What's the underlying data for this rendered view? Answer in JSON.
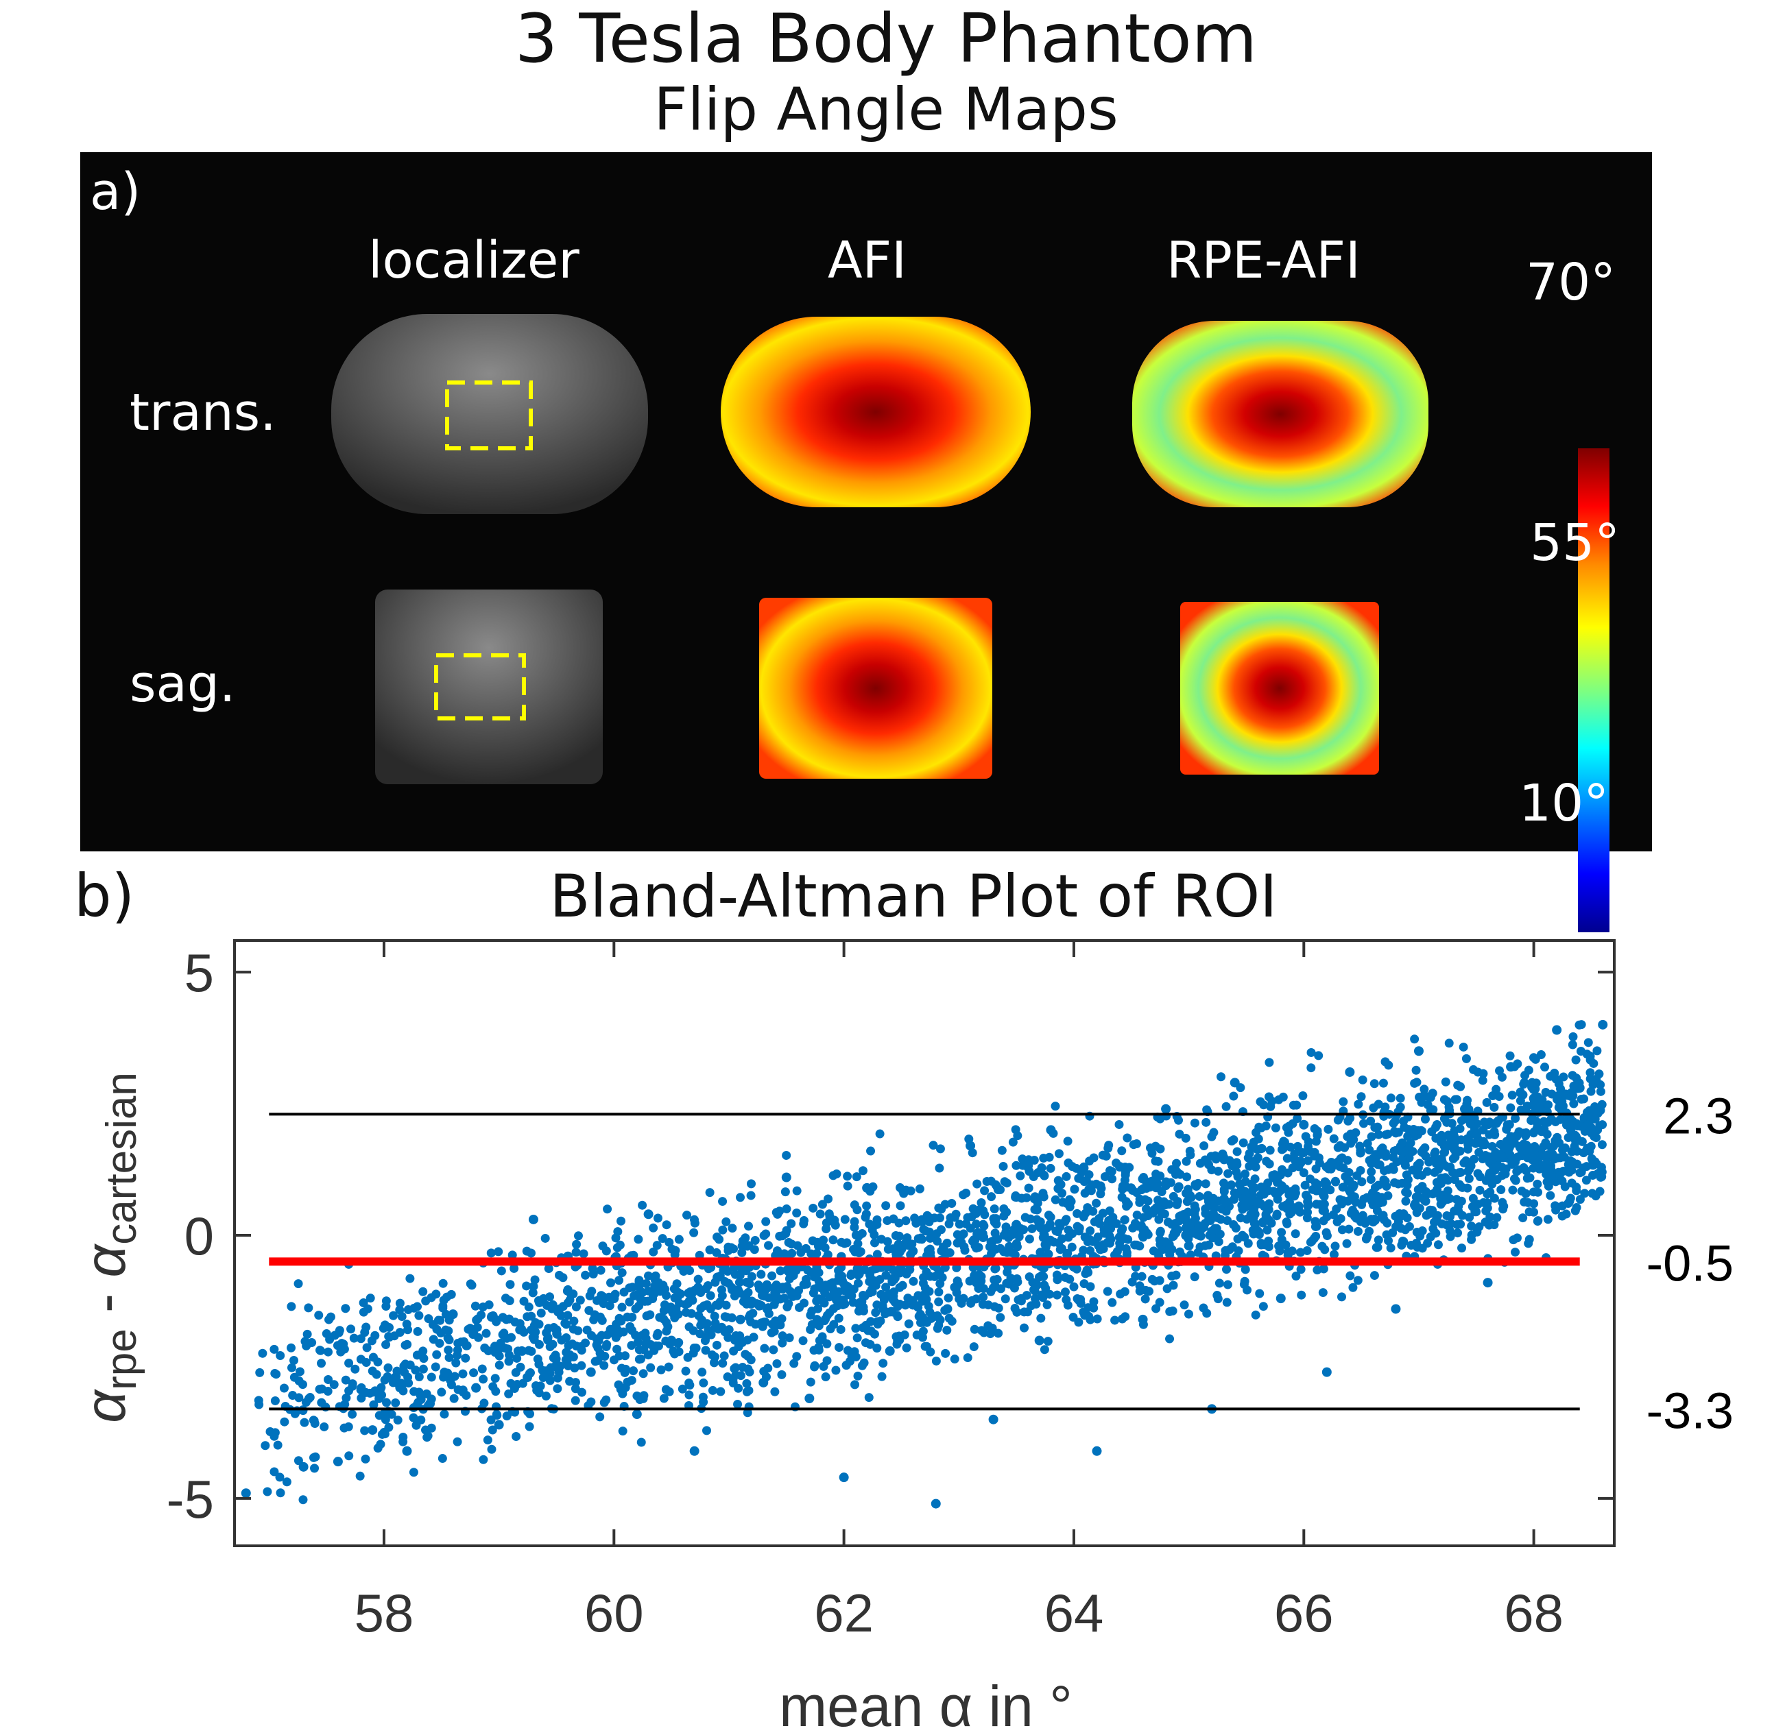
{
  "title": {
    "line1": "3 Tesla Body Phantom",
    "line2": "Flip Angle Maps"
  },
  "panel_a": {
    "label": "a)",
    "columns": [
      "localizer",
      "AFI",
      "RPE-AFI"
    ],
    "rows": [
      "trans.",
      "sag."
    ],
    "colorbar": {
      "max_label": "70°",
      "mid_label": "55°",
      "min_label": "10°",
      "colormap": "jet"
    }
  },
  "panel_b": {
    "label": "b)"
  },
  "chart_data": {
    "type": "scatter",
    "title": "Bland-Altman Plot of ROI",
    "xlabel": "mean α in °",
    "ylabel_parts": {
      "alpha1": "α",
      "sub1": "rpe",
      "dash": " - ",
      "alpha2": "α",
      "sub2": "cartesian"
    },
    "xlim": [
      56.7,
      68.7
    ],
    "ylim": [
      -5.9,
      5.6
    ],
    "xticks": [
      58,
      60,
      62,
      64,
      66,
      68
    ],
    "yticks": [
      -5,
      0,
      5
    ],
    "grid": false,
    "point_color": "#0072BD",
    "trend": {
      "slope": 0.44,
      "intercept_at": 62.8,
      "intercept_value": -0.5,
      "spread": 1.45
    },
    "points": [
      [
        56.8,
        -4.9
      ],
      [
        57.3,
        -4.4
      ],
      [
        57.6,
        -4.3
      ],
      [
        57.9,
        -3.7
      ],
      [
        58.1,
        -2.7
      ],
      [
        58.2,
        -4.1
      ],
      [
        58.4,
        -3.2
      ],
      [
        58.6,
        -1.5
      ],
      [
        58.8,
        -2.9
      ],
      [
        59.0,
        -3.6
      ],
      [
        59.2,
        -2.2
      ],
      [
        59.3,
        0.3
      ],
      [
        59.5,
        -1.8
      ],
      [
        59.6,
        -0.4
      ],
      [
        59.8,
        -2.6
      ],
      [
        60.0,
        -1.2
      ],
      [
        60.2,
        -3.4
      ],
      [
        60.3,
        0.4
      ],
      [
        60.5,
        -2.0
      ],
      [
        60.7,
        -4.1
      ],
      [
        60.9,
        -0.8
      ],
      [
        61.1,
        -1.6
      ],
      [
        61.3,
        -2.8
      ],
      [
        61.5,
        1.1
      ],
      [
        61.7,
        -3.1
      ],
      [
        61.9,
        -1.0
      ],
      [
        62.0,
        -4.6
      ],
      [
        62.2,
        0.9
      ],
      [
        62.4,
        -2.2
      ],
      [
        62.6,
        -0.3
      ],
      [
        62.8,
        -5.1
      ],
      [
        62.9,
        -1.4
      ],
      [
        63.1,
        1.7
      ],
      [
        63.3,
        -3.5
      ],
      [
        63.5,
        0.2
      ],
      [
        63.7,
        -2.0
      ],
      [
        63.8,
        2.0
      ],
      [
        64.0,
        -0.6
      ],
      [
        64.2,
        -4.1
      ],
      [
        64.4,
        1.3
      ],
      [
        64.6,
        -1.6
      ],
      [
        64.8,
        2.4
      ],
      [
        65.0,
        -0.2
      ],
      [
        65.2,
        -3.3
      ],
      [
        65.4,
        2.9
      ],
      [
        65.6,
        0.6
      ],
      [
        65.8,
        -1.2
      ],
      [
        66.0,
        2.1
      ],
      [
        66.2,
        -2.6
      ],
      [
        66.4,
        3.1
      ],
      [
        66.6,
        0.8
      ],
      [
        66.8,
        -1.4
      ],
      [
        67.0,
        3.5
      ],
      [
        67.2,
        1.4
      ],
      [
        67.4,
        2.4
      ],
      [
        67.6,
        -0.9
      ],
      [
        67.8,
        3.2
      ],
      [
        68.0,
        2.6
      ],
      [
        68.2,
        3.9
      ],
      [
        68.4,
        2.8
      ],
      [
        68.6,
        4.0
      ]
    ],
    "reference_lines": [
      {
        "name": "upper limit",
        "y": 2.3,
        "label": "2.3",
        "color": "#000000"
      },
      {
        "name": "mean difference",
        "y": -0.5,
        "label": "-0.5",
        "color": "#ff0000"
      },
      {
        "name": "lower limit",
        "y": -3.3,
        "label": "-3.3",
        "color": "#000000"
      }
    ]
  }
}
